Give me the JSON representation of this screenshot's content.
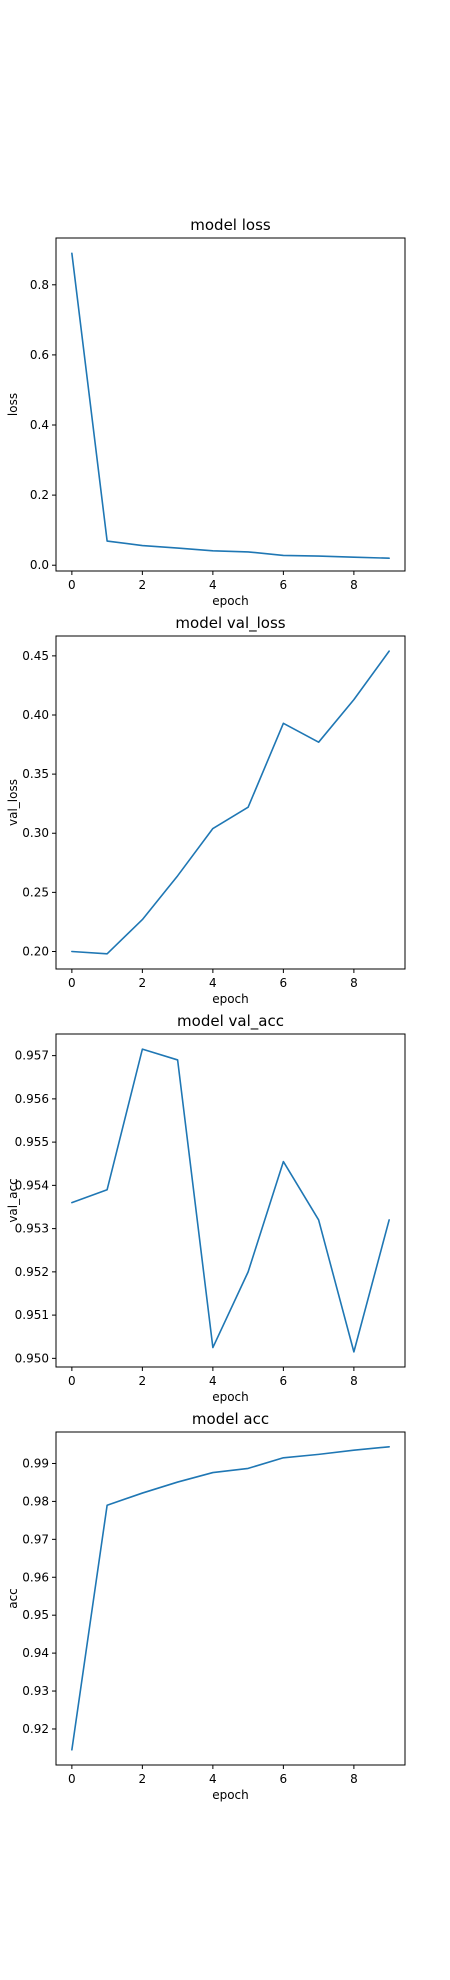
{
  "colors": {
    "series": "#1f77b4",
    "axis": "#000000",
    "background": "#ffffff"
  },
  "chart_data": [
    {
      "type": "line",
      "title": "model loss",
      "xlabel": "epoch",
      "ylabel": "loss",
      "x": [
        0,
        1,
        2,
        3,
        4,
        5,
        6,
        7,
        8,
        9
      ],
      "series": [
        {
          "values": [
            0.89,
            0.069,
            0.056,
            0.049,
            0.041,
            0.038,
            0.028,
            0.026,
            0.023,
            0.02
          ]
        }
      ],
      "xlim": [
        -0.45,
        9.45
      ],
      "ylim": [
        -0.0165,
        0.9335
      ],
      "xticks": [
        0,
        2,
        4,
        6,
        8
      ],
      "xtick_labels": [
        "0",
        "2",
        "4",
        "6",
        "8"
      ],
      "yticks": [
        0.0,
        0.2,
        0.4,
        0.6,
        0.8
      ],
      "ytick_labels": [
        "0.0",
        "0.2",
        "0.4",
        "0.6",
        "0.8"
      ],
      "grid": false
    },
    {
      "type": "line",
      "title": "model val_loss",
      "xlabel": "epoch",
      "ylabel": "val_loss",
      "x": [
        0,
        1,
        2,
        3,
        4,
        5,
        6,
        7,
        8,
        9
      ],
      "series": [
        {
          "values": [
            0.2,
            0.198,
            0.227,
            0.264,
            0.304,
            0.322,
            0.393,
            0.377,
            0.413,
            0.454
          ]
        }
      ],
      "xlim": [
        -0.45,
        9.45
      ],
      "ylim": [
        0.1852,
        0.4668
      ],
      "xticks": [
        0,
        2,
        4,
        6,
        8
      ],
      "xtick_labels": [
        "0",
        "2",
        "4",
        "6",
        "8"
      ],
      "yticks": [
        0.2,
        0.25,
        0.3,
        0.35,
        0.4,
        0.45
      ],
      "ytick_labels": [
        "0.20",
        "0.25",
        "0.30",
        "0.35",
        "0.40",
        "0.45"
      ],
      "grid": false
    },
    {
      "type": "line",
      "title": "model val_acc",
      "xlabel": "epoch",
      "ylabel": "val_acc",
      "x": [
        0,
        1,
        2,
        3,
        4,
        5,
        6,
        7,
        8,
        9
      ],
      "series": [
        {
          "values": [
            0.9536,
            0.9539,
            0.95715,
            0.9569,
            0.95025,
            0.952,
            0.95455,
            0.9532,
            0.95015,
            0.9532
          ]
        }
      ],
      "xlim": [
        -0.45,
        9.45
      ],
      "ylim": [
        0.9498,
        0.9575
      ],
      "xticks": [
        0,
        2,
        4,
        6,
        8
      ],
      "xtick_labels": [
        "0",
        "2",
        "4",
        "6",
        "8"
      ],
      "yticks": [
        0.95,
        0.951,
        0.952,
        0.953,
        0.954,
        0.955,
        0.956,
        0.957
      ],
      "ytick_labels": [
        "0.950",
        "0.951",
        "0.952",
        "0.953",
        "0.954",
        "0.955",
        "0.956",
        "0.957"
      ],
      "grid": false
    },
    {
      "type": "line",
      "title": "model acc",
      "xlabel": "epoch",
      "ylabel": "acc",
      "x": [
        0,
        1,
        2,
        3,
        4,
        5,
        6,
        7,
        8,
        9
      ],
      "series": [
        {
          "values": [
            0.9145,
            0.979,
            0.9822,
            0.9851,
            0.9876,
            0.9887,
            0.9915,
            0.9924,
            0.9935,
            0.9944
          ]
        }
      ],
      "xlim": [
        -0.45,
        9.45
      ],
      "ylim": [
        0.9105,
        0.9983
      ],
      "xticks": [
        0,
        2,
        4,
        6,
        8
      ],
      "xtick_labels": [
        "0",
        "2",
        "4",
        "6",
        "8"
      ],
      "yticks": [
        0.92,
        0.93,
        0.94,
        0.95,
        0.96,
        0.97,
        0.98,
        0.99
      ],
      "ytick_labels": [
        "0.92",
        "0.93",
        "0.94",
        "0.95",
        "0.96",
        "0.97",
        "0.98",
        "0.99"
      ],
      "grid": false
    }
  ]
}
